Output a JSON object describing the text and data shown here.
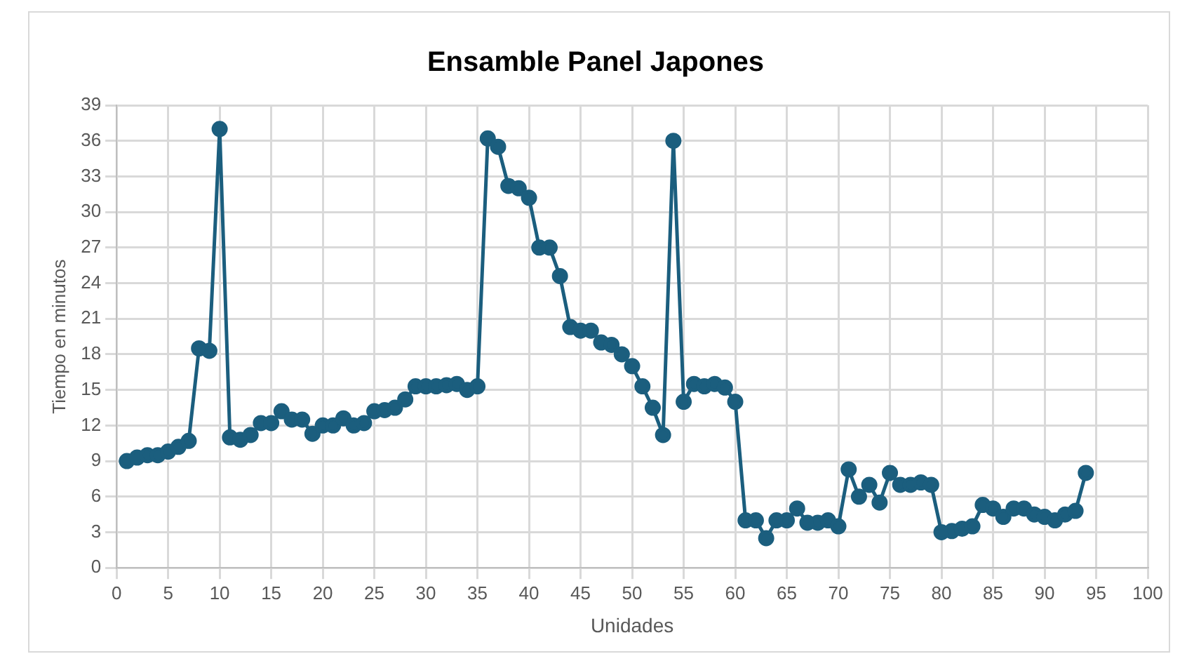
{
  "chart_data": {
    "type": "line",
    "title": "Ensamble Panel Japones",
    "xlabel": "Unidades",
    "ylabel": "Tiempo en minutos",
    "x": [
      1,
      2,
      3,
      4,
      5,
      6,
      7,
      8,
      9,
      10,
      11,
      12,
      13,
      14,
      15,
      16,
      17,
      18,
      19,
      20,
      21,
      22,
      23,
      24,
      25,
      26,
      27,
      28,
      29,
      30,
      31,
      32,
      33,
      34,
      35,
      36,
      37,
      38,
      39,
      40,
      41,
      42,
      43,
      44,
      45,
      46,
      47,
      48,
      49,
      50,
      51,
      52,
      53,
      54,
      55,
      56,
      57,
      58,
      59,
      60,
      61,
      62,
      63,
      64,
      65,
      66,
      67,
      68,
      69,
      70,
      71,
      72,
      73,
      74,
      75,
      76,
      77,
      78,
      79,
      80,
      81,
      82,
      83,
      84,
      85,
      86,
      87,
      88,
      89,
      90,
      91,
      92,
      93,
      94
    ],
    "series": [
      {
        "color": "#1b5e7e",
        "values": [
          9.0,
          9.3,
          9.5,
          9.5,
          9.8,
          10.2,
          10.7,
          18.5,
          18.3,
          37,
          11,
          10.8,
          11.2,
          12.2,
          12.2,
          13.2,
          12.5,
          12.5,
          11.3,
          12,
          12,
          12.6,
          12,
          12.2,
          13.2,
          13.3,
          13.5,
          14.2,
          15.3,
          15.3,
          15.3,
          15.4,
          15.5,
          15,
          15.3,
          36.2,
          35.5,
          32.2,
          32,
          31.2,
          27,
          27,
          24.6,
          20.3,
          20,
          20,
          19,
          18.8,
          18,
          17,
          15.3,
          13.5,
          11.2,
          36,
          14,
          15.5,
          15.3,
          15.5,
          15.2,
          14,
          4,
          4,
          2.5,
          4,
          4,
          5,
          3.8,
          3.8,
          4,
          3.5,
          8.3,
          6,
          7,
          5.5,
          8,
          7,
          7,
          7.2,
          7,
          3,
          3.1,
          3.3,
          3.5,
          5.3,
          5,
          4.3,
          5,
          5,
          4.5,
          4.3,
          4,
          4.5,
          4.8,
          8
        ]
      }
    ],
    "xlim": [
      0,
      100
    ],
    "xticks": [
      0,
      5,
      10,
      15,
      20,
      25,
      30,
      35,
      40,
      45,
      50,
      55,
      60,
      65,
      70,
      75,
      80,
      85,
      90,
      95,
      100
    ],
    "ylim": [
      0,
      39
    ],
    "yticks": [
      0,
      3,
      6,
      9,
      12,
      15,
      18,
      21,
      24,
      27,
      30,
      33,
      36,
      39
    ],
    "grid": true,
    "legend": false,
    "marker": "circle",
    "line_style": "solid"
  }
}
